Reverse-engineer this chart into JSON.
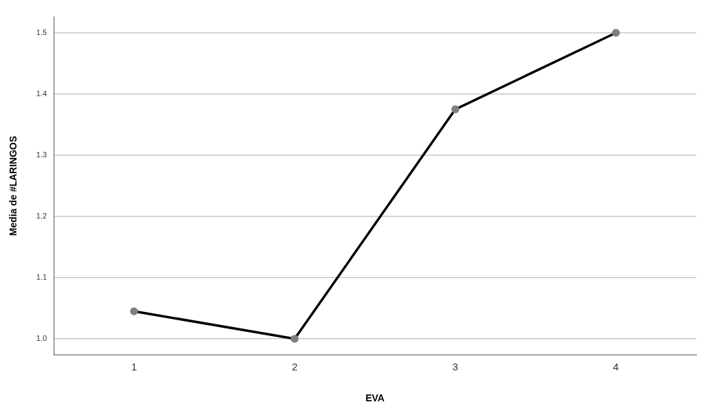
{
  "chart_data": {
    "type": "line",
    "xlabel": "EVA",
    "ylabel": "Media de #LARINGOS",
    "categories": [
      "1",
      "2",
      "3",
      "4"
    ],
    "series": [
      {
        "color": "#000000",
        "values": [
          1.045,
          1.0,
          1.375,
          1.5
        ]
      }
    ],
    "ylim": [
      0.974,
      1.526
    ],
    "yticks": [
      {
        "value": 1,
        "label": "1.0"
      },
      1.1,
      1.2,
      1.3,
      1.4,
      1.5
    ],
    "grid": "y",
    "legend": false,
    "marker": "circle",
    "line_style": "solid"
  }
}
